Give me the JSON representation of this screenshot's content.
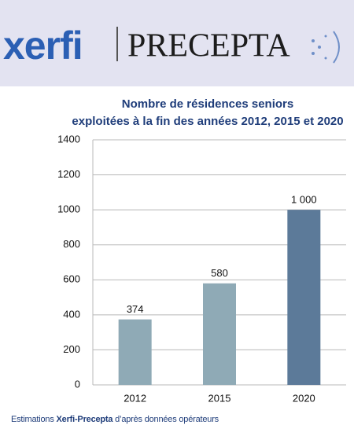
{
  "header": {
    "logo_left": "xerfi",
    "logo_right": "PRECEPTA"
  },
  "chart_data": {
    "type": "bar",
    "title": [
      "Nombre de résidences seniors",
      "exploitées  à la fin des années 2012, 2015 et 2020"
    ],
    "categories": [
      "2012",
      "2015",
      "2020"
    ],
    "values": [
      374,
      580,
      1000
    ],
    "value_labels": [
      "374",
      "580",
      "1 000"
    ],
    "colors": [
      "#8faab6",
      "#8faab6",
      "#5c7a99"
    ],
    "ylim": [
      0,
      1400
    ],
    "yticks": [
      0,
      200,
      400,
      600,
      800,
      1000,
      1200,
      1400
    ],
    "grid": true
  },
  "footer": {
    "prefix": "Estimations",
    "bold": "Xerfi-Precepta",
    "suffix": "d’après données opérateurs"
  }
}
